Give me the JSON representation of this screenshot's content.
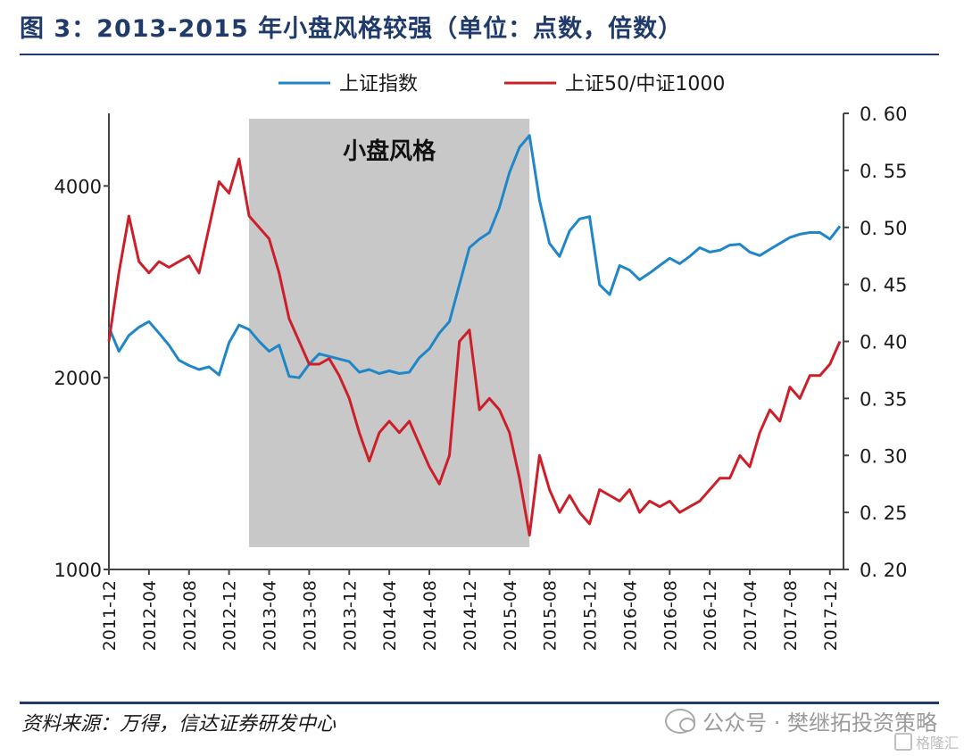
{
  "title": "图 3：2013-2015 年小盘风格较强（单位：点数，倍数）",
  "source": "资料来源：万得，信达证券研发中心",
  "watermark": "公众号 · 樊继拓投资策略",
  "brand": "格隆汇",
  "chart_data": {
    "type": "line",
    "legend_placement": "top",
    "grid": false,
    "colors": {
      "sse": "#1f86c8",
      "ratio": "#cc1f2a",
      "shade": "#c8c8c8"
    },
    "shaded_region": {
      "label": "小盘风格",
      "start": "2013-02",
      "end": "2015-06"
    },
    "x_ticks": [
      "2011-12",
      "2012-04",
      "2012-08",
      "2012-12",
      "2013-04",
      "2013-08",
      "2013-12",
      "2014-04",
      "2014-08",
      "2014-12",
      "2015-04",
      "2015-08",
      "2015-12",
      "2016-04",
      "2016-08",
      "2016-12",
      "2017-04",
      "2017-08",
      "2017-12"
    ],
    "y_left": {
      "scale": "log",
      "ticks": [
        "1000",
        "2000",
        "4000"
      ],
      "range": [
        1000,
        5200
      ]
    },
    "y_right": {
      "ticks": [
        "0. 20",
        "0. 25",
        "0. 30",
        "0. 35",
        "0. 40",
        "0. 45",
        "0. 50",
        "0. 55",
        "0. 60"
      ],
      "range": [
        0.2,
        0.6
      ]
    },
    "series": [
      {
        "name": "上证指数",
        "axis": "left",
        "x": [
          "2011-12",
          "2012-01",
          "2012-02",
          "2012-03",
          "2012-04",
          "2012-05",
          "2012-06",
          "2012-07",
          "2012-08",
          "2012-09",
          "2012-10",
          "2012-11",
          "2012-12",
          "2013-01",
          "2013-02",
          "2013-03",
          "2013-04",
          "2013-05",
          "2013-06",
          "2013-07",
          "2013-08",
          "2013-09",
          "2013-10",
          "2013-11",
          "2013-12",
          "2014-01",
          "2014-02",
          "2014-03",
          "2014-04",
          "2014-05",
          "2014-06",
          "2014-07",
          "2014-08",
          "2014-09",
          "2014-10",
          "2014-11",
          "2014-12",
          "2015-01",
          "2015-02",
          "2015-03",
          "2015-04",
          "2015-05",
          "2015-06",
          "2015-07",
          "2015-08",
          "2015-09",
          "2015-10",
          "2015-11",
          "2015-12",
          "2016-01",
          "2016-02",
          "2016-03",
          "2016-04",
          "2016-05",
          "2016-06",
          "2016-07",
          "2016-08",
          "2016-09",
          "2016-10",
          "2016-11",
          "2016-12",
          "2017-01",
          "2017-02",
          "2017-03",
          "2017-04",
          "2017-05",
          "2017-06",
          "2017-07",
          "2017-08",
          "2017-09",
          "2017-10",
          "2017-11",
          "2017-12",
          "2018-01"
        ],
        "values": [
          2400,
          2200,
          2330,
          2400,
          2450,
          2350,
          2250,
          2130,
          2090,
          2060,
          2080,
          2020,
          2270,
          2420,
          2380,
          2280,
          2200,
          2250,
          2010,
          2000,
          2100,
          2180,
          2160,
          2140,
          2120,
          2040,
          2060,
          2030,
          2050,
          2030,
          2040,
          2150,
          2220,
          2350,
          2450,
          2800,
          3200,
          3300,
          3380,
          3700,
          4200,
          4600,
          4800,
          3800,
          3250,
          3100,
          3400,
          3550,
          3580,
          2800,
          2700,
          3000,
          2950,
          2850,
          2920,
          3000,
          3080,
          3020,
          3100,
          3200,
          3150,
          3170,
          3230,
          3240,
          3150,
          3110,
          3180,
          3250,
          3320,
          3360,
          3380,
          3380,
          3300,
          3460
        ]
      },
      {
        "name": "上证50/中证1000",
        "axis": "right",
        "x": [
          "2011-12",
          "2012-01",
          "2012-02",
          "2012-03",
          "2012-04",
          "2012-05",
          "2012-06",
          "2012-07",
          "2012-08",
          "2012-09",
          "2012-10",
          "2012-11",
          "2012-12",
          "2013-01",
          "2013-02",
          "2013-03",
          "2013-04",
          "2013-05",
          "2013-06",
          "2013-07",
          "2013-08",
          "2013-09",
          "2013-10",
          "2013-11",
          "2013-12",
          "2014-01",
          "2014-02",
          "2014-03",
          "2014-04",
          "2014-05",
          "2014-06",
          "2014-07",
          "2014-08",
          "2014-09",
          "2014-10",
          "2014-11",
          "2014-12",
          "2015-01",
          "2015-02",
          "2015-03",
          "2015-04",
          "2015-05",
          "2015-06",
          "2015-07",
          "2015-08",
          "2015-09",
          "2015-10",
          "2015-11",
          "2015-12",
          "2016-01",
          "2016-02",
          "2016-03",
          "2016-04",
          "2016-05",
          "2016-06",
          "2016-07",
          "2016-08",
          "2016-09",
          "2016-10",
          "2016-11",
          "2016-12",
          "2017-01",
          "2017-02",
          "2017-03",
          "2017-04",
          "2017-05",
          "2017-06",
          "2017-07",
          "2017-08",
          "2017-09",
          "2017-10",
          "2017-11",
          "2017-12",
          "2018-01"
        ],
        "values": [
          0.4,
          0.46,
          0.51,
          0.47,
          0.46,
          0.47,
          0.465,
          0.47,
          0.475,
          0.46,
          0.5,
          0.54,
          0.53,
          0.56,
          0.51,
          0.5,
          0.49,
          0.46,
          0.42,
          0.4,
          0.38,
          0.38,
          0.385,
          0.37,
          0.35,
          0.32,
          0.295,
          0.32,
          0.33,
          0.32,
          0.33,
          0.31,
          0.29,
          0.275,
          0.3,
          0.4,
          0.41,
          0.34,
          0.35,
          0.34,
          0.32,
          0.28,
          0.23,
          0.3,
          0.27,
          0.25,
          0.265,
          0.25,
          0.24,
          0.27,
          0.265,
          0.26,
          0.27,
          0.25,
          0.26,
          0.255,
          0.26,
          0.25,
          0.255,
          0.26,
          0.27,
          0.28,
          0.28,
          0.3,
          0.29,
          0.32,
          0.34,
          0.33,
          0.36,
          0.35,
          0.37,
          0.37,
          0.38,
          0.4
        ]
      }
    ]
  }
}
